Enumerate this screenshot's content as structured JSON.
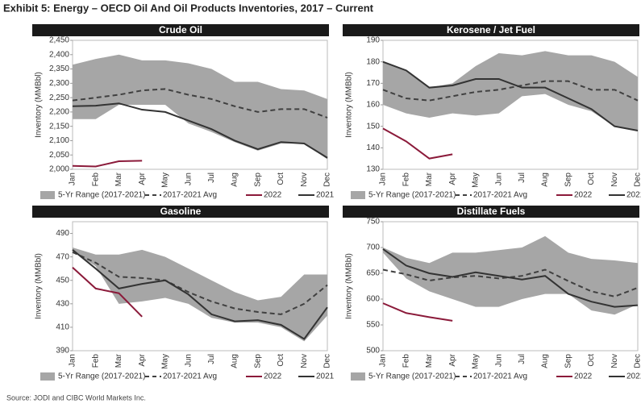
{
  "title": "Exhibit 5: Energy – OECD Oil And Oil Products Inventories, 2017 – Current",
  "source": "Source: JODI and CIBC World Markets Inc.",
  "chart_data": [
    {
      "type": "line",
      "title": "Crude Oil",
      "ylabel": "Inventory (MMBbl)",
      "categories": [
        "Jan",
        "Feb",
        "Mar",
        "Apr",
        "May",
        "Jun",
        "Jul",
        "Aug",
        "Sep",
        "Oct",
        "Nov",
        "Dec"
      ],
      "ylim": [
        2000,
        2450
      ],
      "yticks": [
        {
          "value": 2000,
          "label": "2,000"
        },
        {
          "value": 2050,
          "label": "2,050"
        },
        {
          "value": 2100,
          "label": "2,100"
        },
        {
          "value": 2150,
          "label": "2,150"
        },
        {
          "value": 2200,
          "label": "2,200"
        },
        {
          "value": 2250,
          "label": "2,250"
        },
        {
          "value": 2300,
          "label": "2,300"
        },
        {
          "value": 2350,
          "label": "2,350"
        },
        {
          "value": 2400,
          "label": "2,400"
        },
        {
          "value": 2450,
          "label": "2,450"
        }
      ],
      "grid": false,
      "series": [
        {
          "name": "5-Yr Range (2017-2021)",
          "type": "range",
          "color": "#a6a6a6",
          "high": [
            2365,
            2385,
            2400,
            2380,
            2380,
            2370,
            2350,
            2305,
            2305,
            2280,
            2275,
            2245
          ],
          "low": [
            2175,
            2175,
            2225,
            2225,
            2225,
            2160,
            2130,
            2095,
            2065,
            2090,
            2090,
            2035
          ]
        },
        {
          "name": "2017-2021 Avg",
          "type": "dashed",
          "color": "#404040",
          "values": [
            2240,
            2250,
            2260,
            2275,
            2280,
            2260,
            2245,
            2220,
            2200,
            2210,
            2210,
            2180
          ]
        },
        {
          "name": "2022",
          "color": "#8b1a3a",
          "values": [
            2012,
            2010,
            2028,
            2030,
            null,
            null,
            null,
            null,
            null,
            null,
            null,
            null
          ]
        },
        {
          "name": "2021",
          "color": "#333333",
          "values": [
            2220,
            2222,
            2230,
            2208,
            2200,
            2170,
            2140,
            2100,
            2070,
            2095,
            2090,
            2040
          ]
        }
      ]
    },
    {
      "type": "line",
      "title": "Kerosene / Jet Fuel",
      "ylabel": "Inventory (MMBbl)",
      "categories": [
        "Jan",
        "Feb",
        "Mar",
        "Apr",
        "May",
        "Jun",
        "Jul",
        "Aug",
        "Sep",
        "Oct",
        "Nov",
        "Dec"
      ],
      "ylim": [
        130,
        190
      ],
      "yticks": [
        130,
        140,
        150,
        160,
        170,
        180,
        190
      ],
      "grid": false,
      "series": [
        {
          "name": "5-Yr Range (2017-2021)",
          "type": "range",
          "color": "#a6a6a6",
          "high": [
            180,
            176,
            168,
            170,
            178,
            184,
            183,
            185,
            183,
            183,
            180,
            173
          ],
          "low": [
            160,
            156,
            154,
            156,
            155,
            156,
            164,
            165,
            160,
            157,
            150,
            148
          ]
        },
        {
          "name": "2017-2021 Avg",
          "type": "dashed",
          "color": "#404040",
          "values": [
            167,
            163,
            162,
            164,
            166,
            167,
            169,
            171,
            171,
            167,
            167,
            162
          ]
        },
        {
          "name": "2022",
          "color": "#8b1a3a",
          "values": [
            149,
            143,
            135,
            137,
            null,
            null,
            null,
            null,
            null,
            null,
            null,
            null
          ]
        },
        {
          "name": "2021",
          "color": "#333333",
          "values": [
            180,
            176,
            168,
            169,
            172,
            172,
            168,
            168,
            163,
            158,
            150,
            148
          ]
        }
      ]
    },
    {
      "type": "line",
      "title": "Gasoline",
      "ylabel": "Inventory (MMBbl)",
      "categories": [
        "Jan",
        "Feb",
        "Mar",
        "Apr",
        "May",
        "Jun",
        "Jul",
        "Aug",
        "Sep",
        "Oct",
        "Nov",
        "Dec"
      ],
      "ylim": [
        390,
        500
      ],
      "yticks": [
        390,
        410,
        430,
        450,
        470,
        490
      ],
      "grid": false,
      "series": [
        {
          "name": "5-Yr Range (2017-2021)",
          "type": "range",
          "color": "#a6a6a6",
          "high": [
            478,
            472,
            472,
            476,
            470,
            460,
            450,
            440,
            433,
            436,
            455,
            455
          ],
          "low": [
            475,
            462,
            430,
            432,
            435,
            430,
            418,
            414,
            414,
            410,
            398,
            420
          ]
        },
        {
          "name": "2017-2021 Avg",
          "type": "dashed",
          "color": "#404040",
          "values": [
            474,
            465,
            453,
            452,
            450,
            440,
            432,
            426,
            423,
            421,
            430,
            446
          ]
        },
        {
          "name": "2022",
          "color": "#8b1a3a",
          "values": [
            461,
            443,
            439,
            419,
            null,
            null,
            null,
            null,
            null,
            null,
            null,
            null
          ]
        },
        {
          "name": "2021",
          "color": "#333333",
          "values": [
            476,
            460,
            443,
            447,
            450,
            438,
            421,
            415,
            416,
            412,
            400,
            427
          ]
        }
      ]
    },
    {
      "type": "line",
      "title": "Distillate Fuels",
      "ylabel": "Inventory (MMBbl)",
      "categories": [
        "Jan",
        "Feb",
        "Mar",
        "Apr",
        "May",
        "Jun",
        "Jul",
        "Aug",
        "Sep",
        "Oct",
        "Nov",
        "Dec"
      ],
      "ylim": [
        500,
        750
      ],
      "yticks": [
        500,
        550,
        600,
        650,
        700,
        750
      ],
      "grid": false,
      "series": [
        {
          "name": "5-Yr Range (2017-2021)",
          "type": "range",
          "color": "#a6a6a6",
          "high": [
            700,
            680,
            670,
            690,
            690,
            695,
            700,
            722,
            690,
            678,
            675,
            670
          ],
          "low": [
            690,
            640,
            615,
            600,
            585,
            585,
            600,
            610,
            610,
            578,
            570,
            590
          ]
        },
        {
          "name": "2017-2021 Avg",
          "type": "dashed",
          "color": "#404040",
          "values": [
            657,
            648,
            636,
            642,
            645,
            640,
            645,
            657,
            635,
            615,
            605,
            622
          ]
        },
        {
          "name": "2022",
          "color": "#8b1a3a",
          "values": [
            592,
            573,
            565,
            558,
            null,
            null,
            null,
            null,
            null,
            null,
            null,
            null
          ]
        },
        {
          "name": "2021",
          "color": "#333333",
          "values": [
            697,
            665,
            650,
            643,
            652,
            645,
            638,
            645,
            610,
            595,
            585,
            588
          ]
        }
      ]
    }
  ]
}
